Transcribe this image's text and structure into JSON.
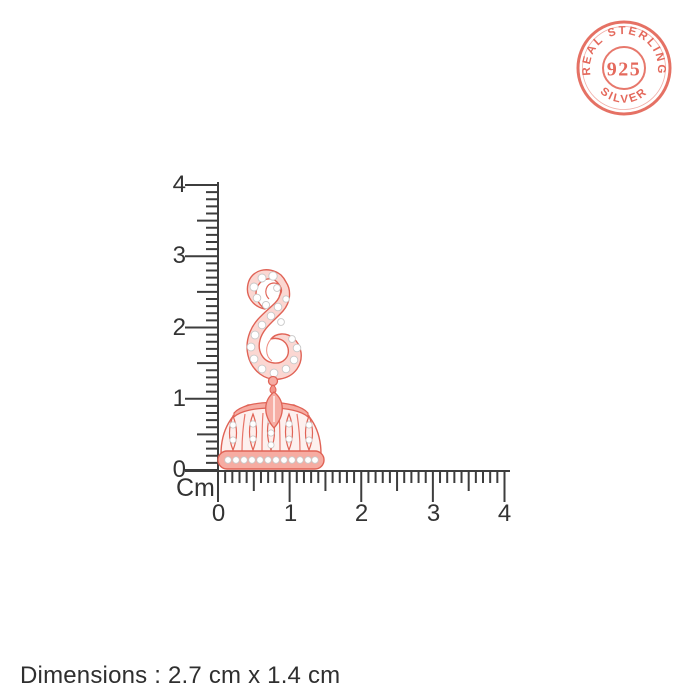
{
  "badge": {
    "top_text": "REAL STERLING",
    "center_text": "925",
    "bottom_text": "SILVER",
    "color": "#e4695c"
  },
  "ruler": {
    "unit_label": "Cm",
    "vertical_labels": [
      "4",
      "3",
      "2",
      "1",
      "0"
    ],
    "horizontal_labels": [
      "0",
      "1",
      "2",
      "3",
      "4"
    ],
    "range_cm": [
      0,
      4
    ],
    "minor_step_cm": 0.1,
    "line_color": "#3d3d3d"
  },
  "product": {
    "description": "rose-gold jhumka drop earring with crystals",
    "metal_color": "#f2948a",
    "metal_outline_color": "#e06356",
    "crystal_color": "#ffffff"
  },
  "footer": {
    "dimensions_text": "Dimensions : 2.7 cm x 1.4 cm"
  }
}
